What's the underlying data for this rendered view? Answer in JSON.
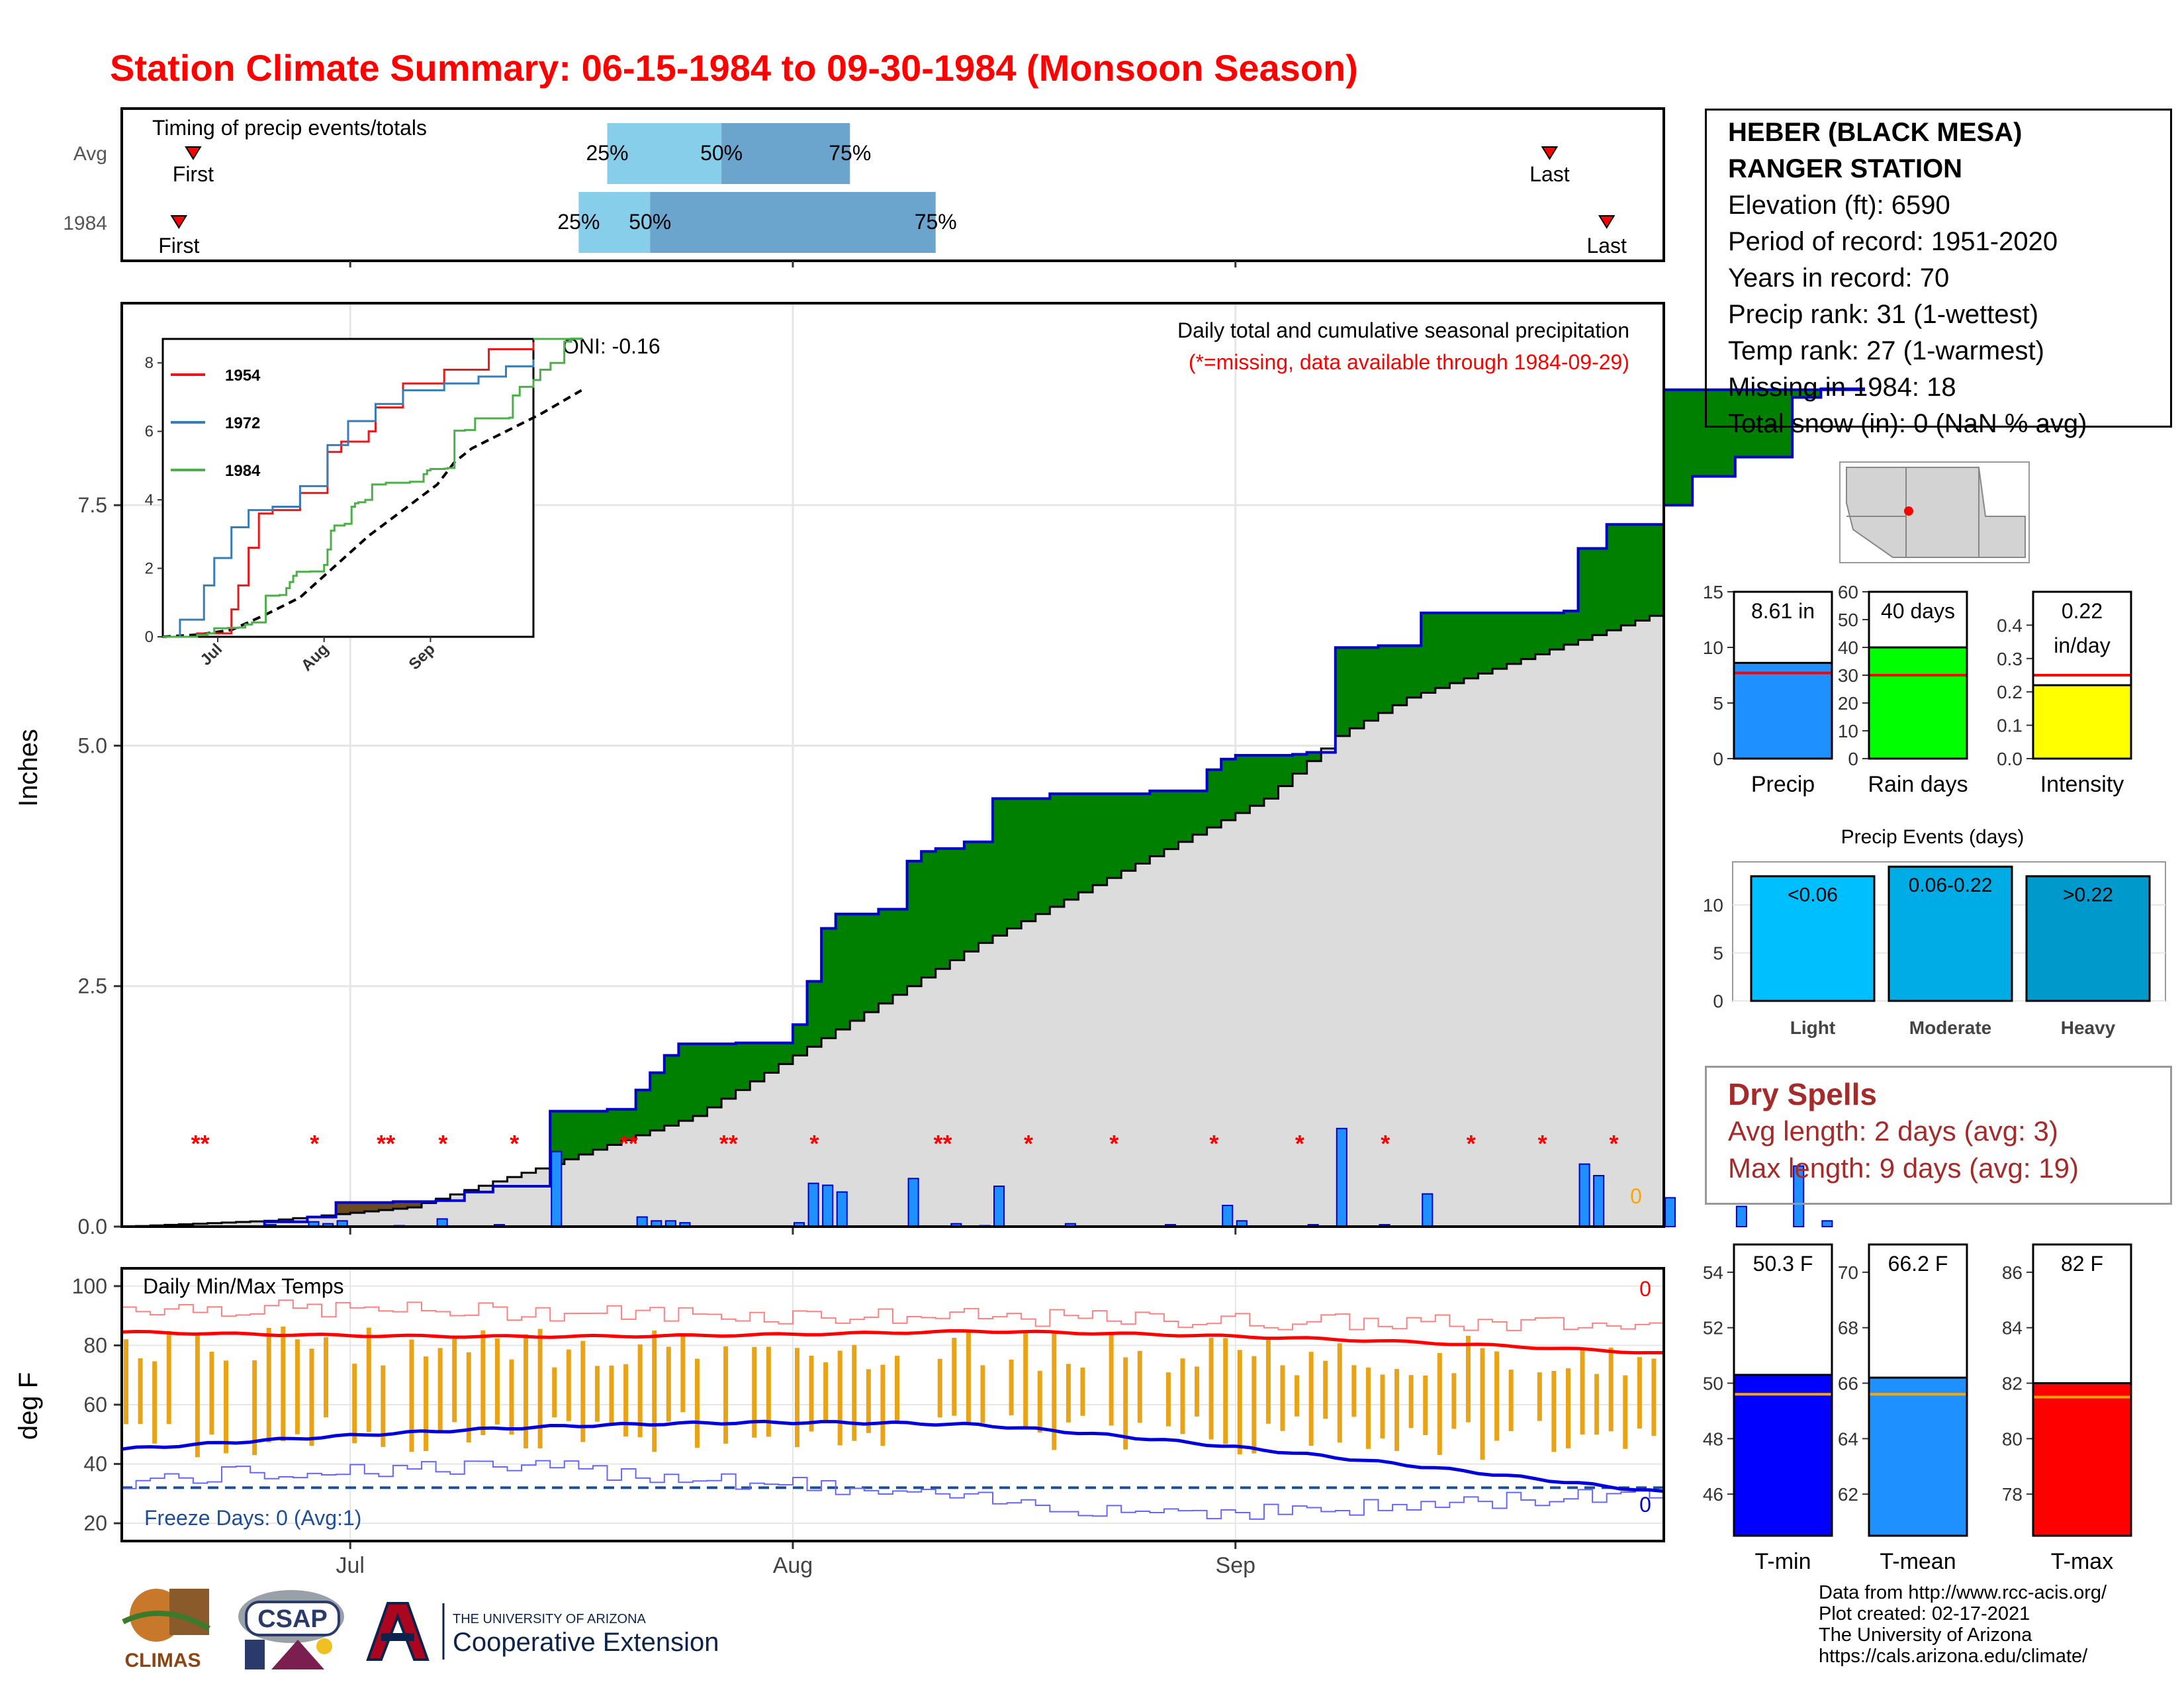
{
  "title": "Station Climate Summary: 06-15-1984 to 09-30-1984 (Monsoon Season)",
  "timing": {
    "label": "Timing of precip events/totals",
    "rows": [
      "Avg",
      "1984"
    ],
    "first_label": "First",
    "last_label": "Last",
    "pct_labels": [
      "25%",
      "50%",
      "75%"
    ],
    "avg": {
      "first": "06-20",
      "q25": "07-19",
      "q50": "07-27",
      "q75": "08-05",
      "last": "09-23"
    },
    "y1984": {
      "first": "06-19",
      "q25": "07-17",
      "q50": "07-22",
      "q75": "08-11",
      "last": "09-27"
    },
    "colors": {
      "light": "#87ceeb",
      "dark": "#6ba4cc"
    }
  },
  "station": {
    "name_line1": "HEBER (BLACK MESA)",
    "name_line2": "RANGER STATION",
    "elevation": "Elevation (ft): 6590",
    "period": "Period of record: 1951-2020",
    "years": "Years in record: 70",
    "precip_rank": "Precip rank: 31 (1-wettest)",
    "temp_rank": "Temp rank: 27 (1-warmest)",
    "missing": "Missing in 1984: 18",
    "snow": "Total snow (in): 0 (NaN % avg)"
  },
  "precip_panel": {
    "ylabel": "Inches",
    "oni": "ONI: -0.16",
    "note1": "Daily total and cumulative seasonal precipitation",
    "note2": "(*=missing, data available through 1984-09-29)",
    "end_count": "0",
    "x_ticks": [
      "Jul",
      "Aug",
      "Sep"
    ],
    "y_ticks": [
      "0.0",
      "2.5",
      "5.0",
      "7.5"
    ]
  },
  "inset": {
    "legend": [
      "1954",
      "1972",
      "1984"
    ],
    "legend_colors": [
      "#e41a1c",
      "#377eb8",
      "#4daf4a"
    ],
    "y_ticks": [
      "0",
      "2",
      "4",
      "6",
      "8"
    ],
    "x_ticks": [
      "Jul",
      "Aug",
      "Sep"
    ]
  },
  "bars_precip": {
    "value": "8.61 in",
    "label": "Precip",
    "y_ticks": [
      "0",
      "5",
      "10",
      "15"
    ],
    "amount": 8.61,
    "avg": 7.7
  },
  "bars_raindays": {
    "value": "40 days",
    "label": "Rain days",
    "y_ticks": [
      "0",
      "10",
      "20",
      "30",
      "40",
      "50",
      "60"
    ],
    "amount": 40,
    "avg": 30
  },
  "bars_intensity": {
    "value1": "0.22",
    "value2": "in/day",
    "label": "Intensity",
    "y_ticks": [
      "0.0",
      "0.1",
      "0.2",
      "0.3",
      "0.4"
    ],
    "amount": 0.22,
    "avg": 0.25
  },
  "events": {
    "title": "Precip Events (days)",
    "y_ticks": [
      "0",
      "5",
      "10"
    ],
    "bars": [
      {
        "label": "<0.06",
        "cat": "Light",
        "value": 13,
        "color": "#00bfff"
      },
      {
        "label": "0.06-0.22",
        "cat": "Moderate",
        "value": 14,
        "color": "#00ace6"
      },
      {
        "label": ">0.22",
        "cat": "Heavy",
        "value": 13,
        "color": "#0099cc"
      }
    ]
  },
  "dry_spells": {
    "title": "Dry Spells",
    "avg": "Avg length: 2 days (avg: 3)",
    "max": "Max length: 9 days (avg: 19)"
  },
  "temps_panel": {
    "ylabel": "deg F",
    "label": "Daily Min/Max Temps",
    "freeze": "Freeze Days: 0 (Avg:1)",
    "hot_count": "0",
    "cold_count": "0",
    "y_ticks": [
      "20",
      "40",
      "60",
      "80",
      "100"
    ]
  },
  "t_bars": [
    {
      "value": "50.3 F",
      "label": "T-min",
      "y_ticks": [
        "46",
        "48",
        "50",
        "52",
        "54"
      ],
      "amount": 50.3,
      "avg": 49.6,
      "color": "#0000ff"
    },
    {
      "value": "66.2 F",
      "label": "T-mean",
      "y_ticks": [
        "62",
        "64",
        "66",
        "68",
        "70"
      ],
      "amount": 66.2,
      "avg": 65.6,
      "color": "#1e90ff"
    },
    {
      "value": "82 F",
      "label": "T-max",
      "y_ticks": [
        "78",
        "80",
        "82",
        "84",
        "86"
      ],
      "amount": 82.0,
      "avg": 81.5,
      "color": "#ff0000"
    }
  ],
  "credits": [
    "Data from http://www.rcc-acis.org/",
    "Plot created: 02-17-2021",
    "The University of Arizona",
    "https://cals.arizona.edu/climate/"
  ],
  "logos": {
    "climas": "CLIMAS",
    "csap": "CSAP",
    "ua1": "THE UNIVERSITY OF ARIZONA",
    "ua2": "Cooperative Extension"
  },
  "chart_data": {
    "type": "area",
    "title": "Daily total and cumulative seasonal precipitation",
    "ylabel": "Inches",
    "x_start": "1984-06-15",
    "x_end": "1984-09-30",
    "cumulative_1984_steps": [
      [
        0,
        0
      ],
      [
        10,
        0.05
      ],
      [
        13,
        0.1
      ],
      [
        15,
        0.25
      ],
      [
        19,
        0.26
      ],
      [
        22,
        0.27
      ],
      [
        24,
        0.36
      ],
      [
        26,
        0.42
      ],
      [
        30,
        1.2
      ],
      [
        34,
        1.22
      ],
      [
        36,
        1.42
      ],
      [
        37,
        1.6
      ],
      [
        38,
        1.78
      ],
      [
        39,
        1.9
      ],
      [
        43,
        1.91
      ],
      [
        47,
        2.1
      ],
      [
        48,
        2.55
      ],
      [
        49,
        3.1
      ],
      [
        50,
        3.25
      ],
      [
        53,
        3.3
      ],
      [
        55,
        3.8
      ],
      [
        56,
        3.9
      ],
      [
        57,
        3.93
      ],
      [
        59,
        4.0
      ],
      [
        61,
        4.45
      ],
      [
        65,
        4.5
      ],
      [
        72,
        4.53
      ],
      [
        76,
        4.75
      ],
      [
        77,
        4.86
      ],
      [
        78,
        4.9
      ],
      [
        82,
        4.91
      ],
      [
        83,
        4.93
      ],
      [
        85,
        6.02
      ],
      [
        88,
        6.04
      ],
      [
        91,
        6.38
      ],
      [
        101,
        6.4
      ],
      [
        102,
        7.05
      ],
      [
        104,
        7.3
      ],
      [
        108,
        7.5
      ],
      [
        110,
        7.8
      ],
      [
        113,
        8.0
      ],
      [
        117,
        8.62
      ],
      [
        119,
        8.71
      ],
      [
        122,
        8.7
      ]
    ],
    "cumulative_avg": [
      [
        0,
        0
      ],
      [
        10,
        0.06
      ],
      [
        20,
        0.2
      ],
      [
        30,
        0.65
      ],
      [
        40,
        1.15
      ],
      [
        50,
        2.05
      ],
      [
        60,
        2.95
      ],
      [
        70,
        3.7
      ],
      [
        80,
        4.45
      ],
      [
        85,
        5.1
      ],
      [
        90,
        5.5
      ],
      [
        100,
        6.0
      ],
      [
        110,
        6.5
      ],
      [
        122,
        7.2
      ]
    ],
    "daily_precip": [
      [
        10,
        0.02
      ],
      [
        13,
        0.05
      ],
      [
        14,
        0.03
      ],
      [
        15,
        0.06
      ],
      [
        19,
        0.01
      ],
      [
        22,
        0.08
      ],
      [
        26,
        0.02
      ],
      [
        30,
        0.78
      ],
      [
        36,
        0.1
      ],
      [
        37,
        0.06
      ],
      [
        38,
        0.06
      ],
      [
        39,
        0.04
      ],
      [
        47,
        0.04
      ],
      [
        48,
        0.45
      ],
      [
        49,
        0.43
      ],
      [
        50,
        0.36
      ],
      [
        55,
        0.5
      ],
      [
        58,
        0.03
      ],
      [
        60,
        0.01
      ],
      [
        61,
        0.42
      ],
      [
        66,
        0.03
      ],
      [
        73,
        0.02
      ],
      [
        77,
        0.22
      ],
      [
        78,
        0.06
      ],
      [
        83,
        0.02
      ],
      [
        85,
        1.02
      ],
      [
        88,
        0.02
      ],
      [
        91,
        0.34
      ],
      [
        102,
        0.65
      ],
      [
        103,
        0.53
      ],
      [
        108,
        0.3
      ],
      [
        113,
        0.21
      ],
      [
        117,
        0.63
      ],
      [
        119,
        0.06
      ]
    ],
    "ylim": [
      0,
      9.6
    ]
  }
}
